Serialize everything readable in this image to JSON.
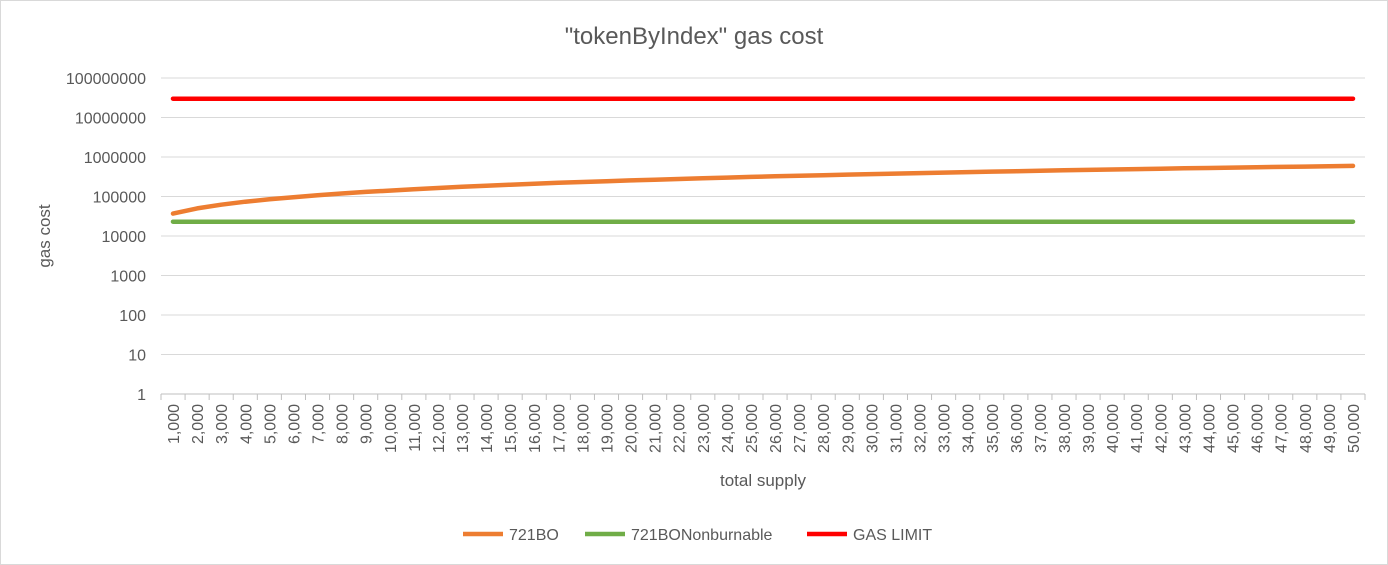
{
  "chart_data": {
    "type": "line",
    "title": "\"tokenByIndex\" gas cost",
    "xlabel": "total supply",
    "ylabel": "gas cost",
    "y_scale": "log",
    "ylim": [
      1,
      100000000
    ],
    "y_ticks": [
      "1",
      "10",
      "100",
      "1000",
      "10000",
      "100000",
      "1000000",
      "10000000",
      "100000000"
    ],
    "grid": true,
    "legend_position": "bottom",
    "categories": [
      "1,000",
      "2,000",
      "3,000",
      "4,000",
      "5,000",
      "6,000",
      "7,000",
      "8,000",
      "9,000",
      "10,000",
      "11,000",
      "12,000",
      "13,000",
      "14,000",
      "15,000",
      "16,000",
      "17,000",
      "18,000",
      "19,000",
      "20,000",
      "21,000",
      "22,000",
      "23,000",
      "24,000",
      "25,000",
      "26,000",
      "27,000",
      "28,000",
      "29,000",
      "30,000",
      "31,000",
      "32,000",
      "33,000",
      "34,000",
      "35,000",
      "36,000",
      "37,000",
      "38,000",
      "39,000",
      "40,000",
      "41,000",
      "42,000",
      "43,000",
      "44,000",
      "45,000",
      "46,000",
      "47,000",
      "48,000",
      "49,000",
      "50,000"
    ],
    "series": [
      {
        "name": "721BO",
        "color": "#ed7d31",
        "values": [
          37000,
          50000,
          62000,
          74000,
          85000,
          96000,
          108000,
          119000,
          131000,
          141000,
          152000,
          164000,
          176000,
          188000,
          199000,
          210000,
          222000,
          233000,
          244000,
          256000,
          267000,
          278000,
          290000,
          301000,
          313000,
          324000,
          335000,
          347000,
          358000,
          369000,
          381000,
          392000,
          403000,
          415000,
          426000,
          437000,
          449000,
          460000,
          471000,
          483000,
          494000,
          505000,
          517000,
          528000,
          539000,
          551000,
          562000,
          573000,
          585000,
          596000
        ]
      },
      {
        "name": "721BONonburnable",
        "color": "#70ad47",
        "values": [
          23000,
          23000,
          23000,
          23000,
          23000,
          23000,
          23000,
          23000,
          23000,
          23000,
          23000,
          23000,
          23000,
          23000,
          23000,
          23000,
          23000,
          23000,
          23000,
          23000,
          23000,
          23000,
          23000,
          23000,
          23000,
          23000,
          23000,
          23000,
          23000,
          23000,
          23000,
          23000,
          23000,
          23000,
          23000,
          23000,
          23000,
          23000,
          23000,
          23000,
          23000,
          23000,
          23000,
          23000,
          23000,
          23000,
          23000,
          23000,
          23000,
          23000
        ]
      },
      {
        "name": "GAS LIMIT",
        "color": "#ff0000",
        "values": [
          30000000,
          30000000,
          30000000,
          30000000,
          30000000,
          30000000,
          30000000,
          30000000,
          30000000,
          30000000,
          30000000,
          30000000,
          30000000,
          30000000,
          30000000,
          30000000,
          30000000,
          30000000,
          30000000,
          30000000,
          30000000,
          30000000,
          30000000,
          30000000,
          30000000,
          30000000,
          30000000,
          30000000,
          30000000,
          30000000,
          30000000,
          30000000,
          30000000,
          30000000,
          30000000,
          30000000,
          30000000,
          30000000,
          30000000,
          30000000,
          30000000,
          30000000,
          30000000,
          30000000,
          30000000,
          30000000,
          30000000,
          30000000,
          30000000,
          30000000
        ]
      }
    ],
    "grid_color": "#d9d9d9",
    "axis_color": "#bfbfbf"
  }
}
